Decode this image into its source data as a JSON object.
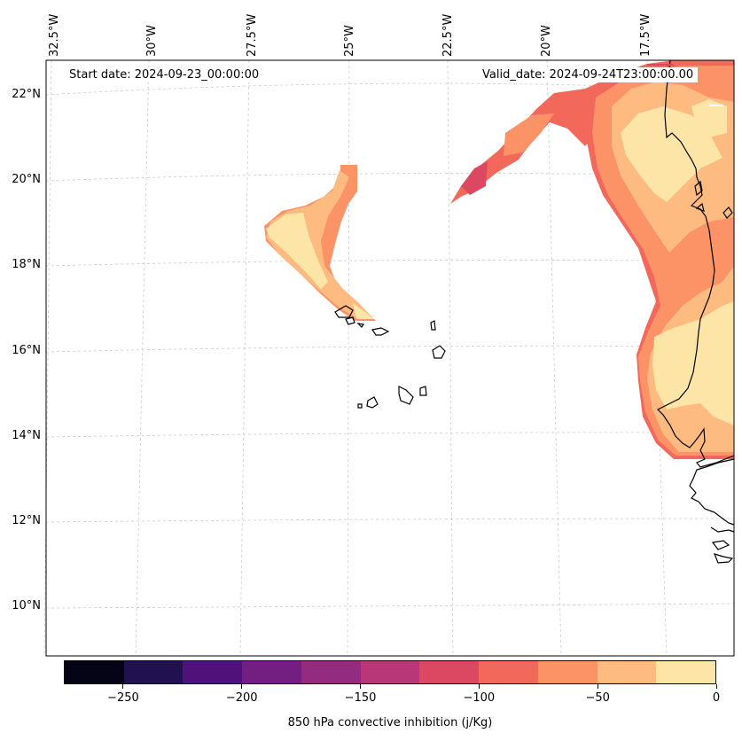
{
  "map": {
    "start_label": "Start date: 2024-09-23_00:00:00",
    "valid_label": "Valid_date: 2024-09-24T23:00:00.00",
    "lat_labels": [
      "22°N",
      "20°N",
      "18°N",
      "16°N",
      "14°N",
      "12°N",
      "10°N"
    ],
    "lon_labels": [
      "32.5°W",
      "30°W",
      "27.5°W",
      "25°W",
      "22.5°W",
      "20°W",
      "17.5°W"
    ],
    "colors": {
      "frame": "#000000",
      "gridline": "#cccccc",
      "coastline": "#000000",
      "cin_-125": "#dc4861",
      "cin_-100": "#f2695c",
      "cin_-75": "#fc9366",
      "cin_-50": "#febb80",
      "cin_-25": "#fde5a7"
    }
  },
  "colorbar": {
    "title": "850 hPa convective inhibition (j/Kg)",
    "tick_labels": [
      "−250",
      "−200",
      "−150",
      "−100",
      "−50",
      "0"
    ],
    "range": [
      -275,
      0
    ],
    "tick_values": [
      -250,
      -200,
      -150,
      -100,
      -50,
      0
    ],
    "colors": [
      "#050417",
      "#221150",
      "#4f127b",
      "#721f81",
      "#932b80",
      "#b73779",
      "#dc4861",
      "#f2695c",
      "#fc9366",
      "#febb80",
      "#fde5a7"
    ]
  }
}
